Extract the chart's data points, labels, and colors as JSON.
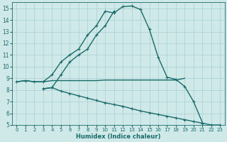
{
  "xlabel": "Humidex (Indice chaleur)",
  "bg_color": "#cfe8e8",
  "grid_color": "#aacfcf",
  "line_color": "#1a6b6b",
  "xlim": [
    -0.5,
    23.5
  ],
  "ylim": [
    5,
    15.5
  ],
  "yticks": [
    5,
    6,
    7,
    8,
    9,
    10,
    11,
    12,
    13,
    14,
    15
  ],
  "xticks": [
    0,
    1,
    2,
    3,
    4,
    5,
    6,
    7,
    8,
    9,
    10,
    11,
    12,
    13,
    14,
    15,
    16,
    17,
    18,
    19,
    20,
    21,
    22,
    23
  ],
  "line1_x": [
    0,
    1,
    2,
    3,
    4,
    5,
    6,
    7,
    8,
    9,
    10,
    11,
    12,
    13,
    14,
    15,
    16,
    17,
    18,
    19,
    20,
    21
  ],
  "line1_y": [
    8.7,
    8.8,
    8.7,
    8.7,
    9.3,
    10.4,
    11.0,
    11.5,
    12.7,
    13.5,
    14.75,
    14.6,
    15.15,
    15.2,
    14.9,
    13.2,
    10.8,
    9.1,
    8.9,
    8.3,
    7.0,
    5.2
  ],
  "line2_x": [
    3,
    4,
    5,
    6,
    7,
    8,
    9,
    10,
    11
  ],
  "line2_y": [
    8.1,
    8.2,
    9.3,
    10.4,
    11.0,
    11.5,
    12.7,
    13.5,
    14.75
  ],
  "line3_x": [
    0,
    1,
    2,
    3,
    4,
    5,
    6,
    7,
    8,
    9,
    10,
    11,
    12,
    13,
    14,
    15,
    16,
    17,
    18,
    19
  ],
  "line3_y": [
    8.7,
    8.8,
    8.7,
    8.7,
    8.8,
    8.8,
    8.8,
    8.8,
    8.8,
    8.8,
    8.85,
    8.85,
    8.85,
    8.85,
    8.85,
    8.85,
    8.85,
    8.85,
    8.85,
    9.0
  ],
  "line4_x": [
    3,
    4,
    5,
    6,
    7,
    8,
    9,
    10,
    11,
    12,
    13,
    14,
    15,
    16,
    17,
    18,
    19,
    20,
    21,
    22,
    23
  ],
  "line4_y": [
    8.1,
    8.2,
    7.9,
    7.7,
    7.5,
    7.3,
    7.1,
    6.9,
    6.75,
    6.6,
    6.4,
    6.2,
    6.05,
    5.9,
    5.75,
    5.6,
    5.45,
    5.3,
    5.15,
    5.0,
    5.0
  ]
}
